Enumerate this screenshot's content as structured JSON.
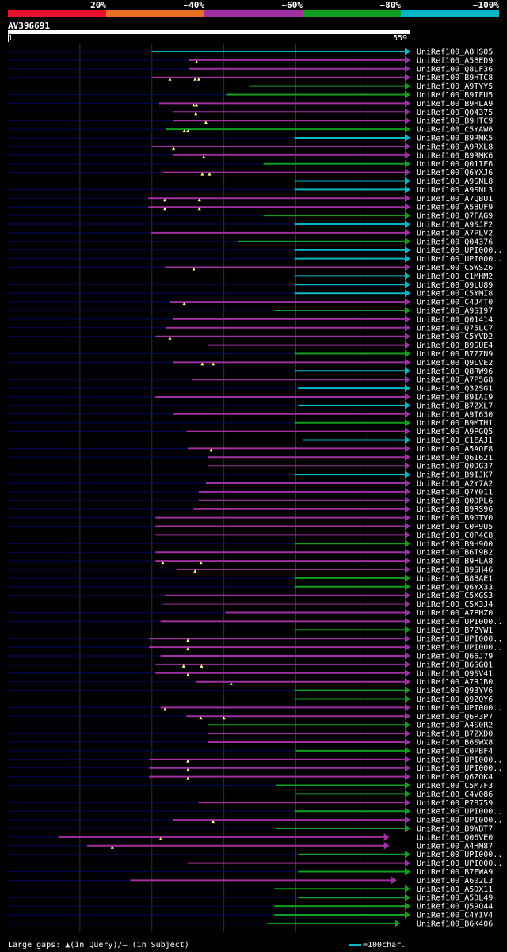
{
  "query_id": "AV396691",
  "ruler": {
    "start": "1",
    "end": "559",
    "length": 559
  },
  "identity_legend": [
    {
      "label": "20%",
      "color": "#e8102a"
    },
    {
      "label": "~40%",
      "color": "#e87020"
    },
    {
      "label": "~60%",
      "color": "#a030a0"
    },
    {
      "label": "~80%",
      "color": "#10a020"
    },
    {
      "label": "~100%",
      "color": "#00b8c8"
    }
  ],
  "footer": {
    "large_gaps": "Large gaps: ▲(in Query)/– (in Subject)",
    "scale": "=100char."
  },
  "colors": {
    "dark_line": "#000860",
    "grid": "#303030",
    "marker": "#ffff80"
  },
  "chart_data": {
    "type": "alignment",
    "hits": [
      {
        "name": "UniRef100_A8HS05",
        "start": 200,
        "end": 559,
        "identity": 5,
        "gaps": []
      },
      {
        "name": "UniRef100_A5BED9",
        "start": 252,
        "end": 559,
        "identity": 3,
        "gaps": [
          262
        ]
      },
      {
        "name": "UniRef100_Q8LF36",
        "start": 252,
        "end": 559,
        "identity": 3,
        "gaps": []
      },
      {
        "name": "UniRef100_B9HTC8",
        "start": 200,
        "end": 559,
        "identity": 3,
        "gaps": [
          225,
          260,
          265
        ]
      },
      {
        "name": "UniRef100_A9TYY5",
        "start": 335,
        "end": 559,
        "identity": 4,
        "gaps": []
      },
      {
        "name": "UniRef100_B9IFU5",
        "start": 303,
        "end": 559,
        "identity": 4,
        "gaps": []
      },
      {
        "name": "UniRef100_B9HLA9",
        "start": 210,
        "end": 559,
        "identity": 3,
        "gaps": [
          258,
          262
        ]
      },
      {
        "name": "UniRef100_Q04375",
        "start": 230,
        "end": 559,
        "identity": 3,
        "gaps": [
          261
        ]
      },
      {
        "name": "UniRef100_B9HTC9",
        "start": 230,
        "end": 559,
        "identity": 3,
        "gaps": [
          275
        ]
      },
      {
        "name": "UniRef100_C5YAW6",
        "start": 220,
        "end": 559,
        "identity": 4,
        "gaps": [
          245,
          250
        ]
      },
      {
        "name": "UniRef100_B9RMK5",
        "start": 398,
        "end": 559,
        "identity": 5,
        "gaps": []
      },
      {
        "name": "UniRef100_A9RXL8",
        "start": 200,
        "end": 559,
        "identity": 3,
        "gaps": [
          230
        ]
      },
      {
        "name": "UniRef100_B9RMK6",
        "start": 230,
        "end": 559,
        "identity": 3,
        "gaps": [
          272
        ]
      },
      {
        "name": "UniRef100_Q01IF6",
        "start": 355,
        "end": 559,
        "identity": 4,
        "gaps": []
      },
      {
        "name": "UniRef100_Q6YXJ6",
        "start": 215,
        "end": 559,
        "identity": 3,
        "gaps": [
          270,
          280
        ]
      },
      {
        "name": "UniRef100_A9SNL8",
        "start": 398,
        "end": 559,
        "identity": 5,
        "gaps": []
      },
      {
        "name": "UniRef100_A9SNL3",
        "start": 398,
        "end": 559,
        "identity": 5,
        "gaps": []
      },
      {
        "name": "UniRef100_A7QBU1",
        "start": 195,
        "end": 559,
        "identity": 3,
        "gaps": [
          218,
          266
        ]
      },
      {
        "name": "UniRef100_A5BUF9",
        "start": 195,
        "end": 559,
        "identity": 3,
        "gaps": [
          218,
          266
        ]
      },
      {
        "name": "UniRef100_Q7FAG9",
        "start": 355,
        "end": 559,
        "identity": 4,
        "gaps": []
      },
      {
        "name": "UniRef100_A9SJF2",
        "start": 398,
        "end": 559,
        "identity": 5,
        "gaps": []
      },
      {
        "name": "UniRef100_A7PLV2",
        "start": 198,
        "end": 559,
        "identity": 3,
        "gaps": []
      },
      {
        "name": "UniRef100_Q04376",
        "start": 320,
        "end": 559,
        "identity": 4,
        "gaps": []
      },
      {
        "name": "UniRef100_UPI000..",
        "start": 398,
        "end": 559,
        "identity": 5,
        "gaps": []
      },
      {
        "name": "UniRef100_UPI000..",
        "start": 398,
        "end": 559,
        "identity": 5,
        "gaps": []
      },
      {
        "name": "UniRef100_C5WSZ6",
        "start": 218,
        "end": 559,
        "identity": 3,
        "gaps": [
          258
        ]
      },
      {
        "name": "UniRef100_C1MHM2",
        "start": 398,
        "end": 559,
        "identity": 5,
        "gaps": []
      },
      {
        "name": "UniRef100_Q9LU89",
        "start": 398,
        "end": 559,
        "identity": 5,
        "gaps": []
      },
      {
        "name": "UniRef100_C5YMI8",
        "start": 398,
        "end": 559,
        "identity": 5,
        "gaps": []
      },
      {
        "name": "UniRef100_C4J4T0",
        "start": 225,
        "end": 559,
        "identity": 3,
        "gaps": [
          245
        ]
      },
      {
        "name": "UniRef100_A9SI97",
        "start": 370,
        "end": 559,
        "identity": 4,
        "gaps": []
      },
      {
        "name": "UniRef100_Q01414",
        "start": 230,
        "end": 559,
        "identity": 3,
        "gaps": []
      },
      {
        "name": "UniRef100_Q75LC7",
        "start": 220,
        "end": 559,
        "identity": 3,
        "gaps": []
      },
      {
        "name": "UniRef100_C5YVD2",
        "start": 205,
        "end": 559,
        "identity": 3,
        "gaps": [
          225
        ]
      },
      {
        "name": "UniRef100_B9SUE4",
        "start": 278,
        "end": 559,
        "identity": 3,
        "gaps": []
      },
      {
        "name": "UniRef100_B7ZZN9",
        "start": 398,
        "end": 559,
        "identity": 4,
        "gaps": []
      },
      {
        "name": "UniRef100_Q9LVE2",
        "start": 230,
        "end": 559,
        "identity": 3,
        "gaps": [
          270,
          285
        ]
      },
      {
        "name": "UniRef100_Q8RW96",
        "start": 398,
        "end": 559,
        "identity": 5,
        "gaps": []
      },
      {
        "name": "UniRef100_A7P5G8",
        "start": 255,
        "end": 559,
        "identity": 3,
        "gaps": []
      },
      {
        "name": "UniRef100_Q32SG1",
        "start": 403,
        "end": 559,
        "identity": 5,
        "gaps": []
      },
      {
        "name": "UniRef100_B9IAI9",
        "start": 205,
        "end": 559,
        "identity": 3,
        "gaps": []
      },
      {
        "name": "UniRef100_B7ZXL7",
        "start": 403,
        "end": 559,
        "identity": 5,
        "gaps": []
      },
      {
        "name": "UniRef100_A9T630",
        "start": 230,
        "end": 559,
        "identity": 3,
        "gaps": []
      },
      {
        "name": "UniRef100_B9MTH1",
        "start": 398,
        "end": 559,
        "identity": 4,
        "gaps": []
      },
      {
        "name": "UniRef100_A9PGQ5",
        "start": 248,
        "end": 559,
        "identity": 3,
        "gaps": []
      },
      {
        "name": "UniRef100_C1EAJ1",
        "start": 410,
        "end": 559,
        "identity": 5,
        "gaps": []
      },
      {
        "name": "UniRef100_A5AQF8",
        "start": 250,
        "end": 559,
        "identity": 3,
        "gaps": [
          282
        ]
      },
      {
        "name": "UniRef100_Q6I621",
        "start": 278,
        "end": 559,
        "identity": 3,
        "gaps": []
      },
      {
        "name": "UniRef100_Q0DG37",
        "start": 278,
        "end": 559,
        "identity": 3,
        "gaps": []
      },
      {
        "name": "UniRef100_B9IJK7",
        "start": 398,
        "end": 559,
        "identity": 5,
        "gaps": []
      },
      {
        "name": "UniRef100_A2Y7A2",
        "start": 275,
        "end": 559,
        "identity": 3,
        "gaps": []
      },
      {
        "name": "UniRef100_Q7Y011",
        "start": 265,
        "end": 559,
        "identity": 3,
        "gaps": []
      },
      {
        "name": "UniRef100_Q0DPL6",
        "start": 265,
        "end": 559,
        "identity": 3,
        "gaps": []
      },
      {
        "name": "UniRef100_B9RS96",
        "start": 258,
        "end": 559,
        "identity": 3,
        "gaps": []
      },
      {
        "name": "UniRef100_B9GTV0",
        "start": 205,
        "end": 559,
        "identity": 3,
        "gaps": []
      },
      {
        "name": "UniRef100_C0P9U5",
        "start": 205,
        "end": 559,
        "identity": 3,
        "gaps": []
      },
      {
        "name": "UniRef100_C0P4C8",
        "start": 205,
        "end": 559,
        "identity": 3,
        "gaps": []
      },
      {
        "name": "UniRef100_B9H900",
        "start": 398,
        "end": 559,
        "identity": 4,
        "gaps": []
      },
      {
        "name": "UniRef100_B6T9B2",
        "start": 205,
        "end": 559,
        "identity": 3,
        "gaps": []
      },
      {
        "name": "UniRef100_B9HLA8",
        "start": 205,
        "end": 559,
        "identity": 3,
        "gaps": [
          215,
          268
        ]
      },
      {
        "name": "UniRef100_B9SH46",
        "start": 235,
        "end": 559,
        "identity": 3,
        "gaps": [
          260
        ]
      },
      {
        "name": "UniRef100_B8BAE1",
        "start": 398,
        "end": 559,
        "identity": 4,
        "gaps": []
      },
      {
        "name": "UniRef100_Q6YX33",
        "start": 398,
        "end": 559,
        "identity": 4,
        "gaps": []
      },
      {
        "name": "UniRef100_C5XGS3",
        "start": 218,
        "end": 559,
        "identity": 3,
        "gaps": []
      },
      {
        "name": "UniRef100_C5X3J4",
        "start": 215,
        "end": 559,
        "identity": 3,
        "gaps": []
      },
      {
        "name": "UniRef100_A7PHZ0",
        "start": 302,
        "end": 559,
        "identity": 3,
        "gaps": []
      },
      {
        "name": "UniRef100_UPI000..",
        "start": 212,
        "end": 559,
        "identity": 3,
        "gaps": []
      },
      {
        "name": "UniRef100_B7ZYW1",
        "start": 398,
        "end": 559,
        "identity": 4,
        "gaps": []
      },
      {
        "name": "UniRef100_UPI000..",
        "start": 196,
        "end": 559,
        "identity": 3,
        "gaps": [
          250
        ]
      },
      {
        "name": "UniRef100_UPI000..",
        "start": 196,
        "end": 559,
        "identity": 3,
        "gaps": [
          250
        ]
      },
      {
        "name": "UniRef100_Q66J79",
        "start": 212,
        "end": 559,
        "identity": 3,
        "gaps": []
      },
      {
        "name": "UniRef100_B6SGQ1",
        "start": 205,
        "end": 559,
        "identity": 3,
        "gaps": [
          244,
          269
        ]
      },
      {
        "name": "UniRef100_Q9SV41",
        "start": 205,
        "end": 559,
        "identity": 3,
        "gaps": [
          250
        ]
      },
      {
        "name": "UniRef100_A7RJB0",
        "start": 262,
        "end": 559,
        "identity": 3,
        "gaps": [
          310
        ]
      },
      {
        "name": "UniRef100_Q93YV6",
        "start": 398,
        "end": 559,
        "identity": 4,
        "gaps": []
      },
      {
        "name": "UniRef100_Q9ZQY6",
        "start": 398,
        "end": 559,
        "identity": 4,
        "gaps": []
      },
      {
        "name": "UniRef100_UPI000..",
        "start": 212,
        "end": 559,
        "identity": 3,
        "gaps": [
          218
        ]
      },
      {
        "name": "UniRef100_Q6P3P7",
        "start": 248,
        "end": 559,
        "identity": 3,
        "gaps": [
          268,
          300
        ]
      },
      {
        "name": "UniRef100_A4S0R2",
        "start": 278,
        "end": 559,
        "identity": 4,
        "gaps": []
      },
      {
        "name": "UniRef100_B7ZXD0",
        "start": 278,
        "end": 559,
        "identity": 3,
        "gaps": []
      },
      {
        "name": "UniRef100_B6SWX8",
        "start": 278,
        "end": 559,
        "identity": 3,
        "gaps": []
      },
      {
        "name": "UniRef100_C0PBF4",
        "start": 400,
        "end": 559,
        "identity": 4,
        "gaps": []
      },
      {
        "name": "UniRef100_UPI000..",
        "start": 196,
        "end": 559,
        "identity": 3,
        "gaps": [
          250
        ]
      },
      {
        "name": "UniRef100_UPI000..",
        "start": 196,
        "end": 559,
        "identity": 3,
        "gaps": [
          250
        ]
      },
      {
        "name": "UniRef100_Q6ZQK4",
        "start": 196,
        "end": 559,
        "identity": 3,
        "gaps": [
          250
        ]
      },
      {
        "name": "UniRef100_C5M7F3",
        "start": 372,
        "end": 559,
        "identity": 4,
        "gaps": []
      },
      {
        "name": "UniRef100_C4V086",
        "start": 400,
        "end": 559,
        "identity": 4,
        "gaps": []
      },
      {
        "name": "UniRef100_P78759",
        "start": 265,
        "end": 559,
        "identity": 3,
        "gaps": []
      },
      {
        "name": "UniRef100_UPI000..",
        "start": 398,
        "end": 559,
        "identity": 4,
        "gaps": []
      },
      {
        "name": "UniRef100_UPI000..",
        "start": 230,
        "end": 559,
        "identity": 3,
        "gaps": [
          285
        ]
      },
      {
        "name": "UniRef100_B9WBT7",
        "start": 372,
        "end": 559,
        "identity": 4,
        "gaps": []
      },
      {
        "name": "UniRef100_Q06VE0",
        "start": 70,
        "end": 530,
        "identity": 3,
        "gaps": [
          212
        ]
      },
      {
        "name": "UniRef100_A4HM87",
        "start": 110,
        "end": 530,
        "identity": 3,
        "gaps": [
          145
        ]
      },
      {
        "name": "UniRef100_UPI000..",
        "start": 403,
        "end": 559,
        "identity": 4,
        "gaps": []
      },
      {
        "name": "UniRef100_UPI000..",
        "start": 250,
        "end": 559,
        "identity": 3,
        "gaps": []
      },
      {
        "name": "UniRef100_B7FWA9",
        "start": 403,
        "end": 559,
        "identity": 4,
        "gaps": []
      },
      {
        "name": "UniRef100_A602L3",
        "start": 170,
        "end": 540,
        "identity": 3,
        "gaps": []
      },
      {
        "name": "UniRef100_A5DX11",
        "start": 370,
        "end": 559,
        "identity": 4,
        "gaps": []
      },
      {
        "name": "UniRef100_A5DL49",
        "start": 403,
        "end": 559,
        "identity": 4,
        "gaps": []
      },
      {
        "name": "UniRef100_Q59Q44",
        "start": 370,
        "end": 559,
        "identity": 4,
        "gaps": []
      },
      {
        "name": "UniRef100_C4YIV4",
        "start": 370,
        "end": 559,
        "identity": 4,
        "gaps": []
      },
      {
        "name": "UniRef100_B6K406",
        "start": 360,
        "end": 545,
        "identity": 4,
        "gaps": []
      }
    ]
  }
}
